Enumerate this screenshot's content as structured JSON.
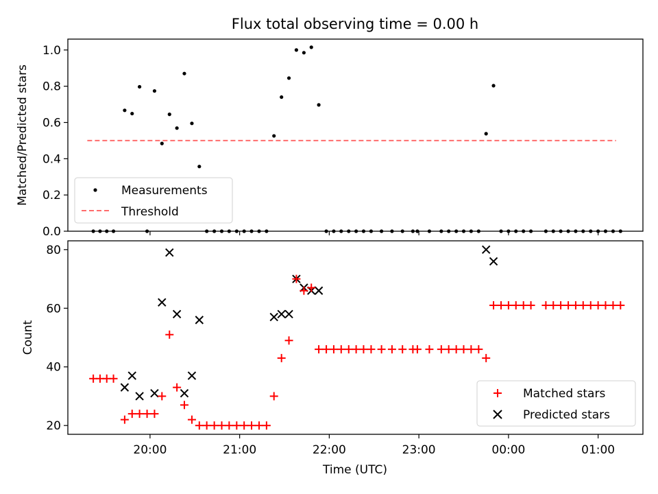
{
  "chart_data": [
    {
      "type": "scatter",
      "title": "Flux total observing time = 0.00 h",
      "xlabel": "",
      "ylabel": "Matched/Predicted stars",
      "xlim": [
        19.083,
        25.5
      ],
      "ylim": [
        0,
        1.06
      ],
      "yticks": [
        "0.0",
        "0.2",
        "0.4",
        "0.6",
        "0.8",
        "1.0"
      ],
      "legend_position": "lower-left",
      "series": [
        {
          "name": "Measurements",
          "kind": "points",
          "color": "#000000",
          "x": [
            19.367,
            19.442,
            19.517,
            19.592,
            19.717,
            19.8,
            19.883,
            19.967,
            20.05,
            20.133,
            20.217,
            20.3,
            20.383,
            20.467,
            20.55,
            20.633,
            20.717,
            20.8,
            20.883,
            20.967,
            21.05,
            21.133,
            21.217,
            21.3,
            21.383,
            21.467,
            21.55,
            21.633,
            21.717,
            21.8,
            21.883,
            21.967,
            22.05,
            22.133,
            22.217,
            22.3,
            22.383,
            22.467,
            22.583,
            22.7,
            22.817,
            22.933,
            22.983,
            23.117,
            23.25,
            23.333,
            23.417,
            23.5,
            23.583,
            23.667,
            23.75,
            23.833,
            23.917,
            24.0,
            24.083,
            24.167,
            24.25,
            24.417,
            24.5,
            24.583,
            24.667,
            24.75,
            24.833,
            24.917,
            25.0,
            25.083,
            25.167,
            25.25
          ],
          "y": [
            0,
            0,
            0,
            0,
            0.667,
            0.649,
            0.797,
            0,
            0.774,
            0.484,
            0.645,
            0.569,
            0.87,
            0.595,
            0.357,
            0,
            0,
            0,
            0,
            0,
            0,
            0,
            0,
            0,
            0.526,
            0.74,
            0.845,
            1.0,
            0.985,
            1.015,
            0.697,
            0,
            0,
            0,
            0,
            0,
            0,
            0,
            0,
            0,
            0,
            0,
            0,
            0,
            0,
            0,
            0,
            0,
            0,
            0,
            0.538,
            0.803,
            0,
            0,
            0,
            0,
            0,
            0,
            0,
            0,
            0,
            0,
            0,
            0,
            0,
            0,
            0,
            0
          ]
        },
        {
          "name": "Threshold",
          "kind": "dashed-line",
          "color": "#ff6b6b",
          "x": [
            19.3,
            25.2
          ],
          "y": [
            0.5,
            0.5
          ]
        }
      ]
    },
    {
      "type": "scatter",
      "title": "",
      "xlabel": "Time (UTC)",
      "ylabel": "Count",
      "xlim": [
        19.083,
        25.5
      ],
      "ylim": [
        17,
        83
      ],
      "yticks": [
        "20",
        "40",
        "60",
        "80"
      ],
      "xtick_values": [
        20,
        21,
        22,
        23,
        24,
        25
      ],
      "xtick_labels": [
        "20:00",
        "21:00",
        "22:00",
        "23:00",
        "00:00",
        "01:00"
      ],
      "legend_position": "lower-right",
      "series": [
        {
          "name": "Matched stars",
          "kind": "plus",
          "color": "#ff0000",
          "x": [
            19.367,
            19.442,
            19.517,
            19.592,
            19.717,
            19.8,
            19.883,
            19.967,
            20.05,
            20.133,
            20.217,
            20.3,
            20.383,
            20.467,
            20.55,
            20.633,
            20.717,
            20.8,
            20.883,
            20.967,
            21.05,
            21.133,
            21.217,
            21.3,
            21.383,
            21.467,
            21.55,
            21.633,
            21.717,
            21.8,
            21.883,
            21.967,
            22.05,
            22.133,
            22.217,
            22.3,
            22.383,
            22.467,
            22.583,
            22.7,
            22.817,
            22.933,
            22.983,
            23.117,
            23.25,
            23.333,
            23.417,
            23.5,
            23.583,
            23.667,
            23.75,
            23.833,
            23.917,
            24.0,
            24.083,
            24.167,
            24.25,
            24.417,
            24.5,
            24.583,
            24.667,
            24.75,
            24.833,
            24.917,
            25.0,
            25.083,
            25.167,
            25.25
          ],
          "y": [
            36,
            36,
            36,
            36,
            22,
            24,
            24,
            24,
            24,
            30,
            51,
            33,
            27,
            22,
            20,
            20,
            20,
            20,
            20,
            20,
            20,
            20,
            20,
            20,
            30,
            43,
            49,
            70,
            66,
            67,
            46,
            46,
            46,
            46,
            46,
            46,
            46,
            46,
            46,
            46,
            46,
            46,
            46,
            46,
            46,
            46,
            46,
            46,
            46,
            46,
            43,
            61,
            61,
            61,
            61,
            61,
            61,
            61,
            61,
            61,
            61,
            61,
            61,
            61,
            61,
            61,
            61,
            61
          ]
        },
        {
          "name": "Predicted stars",
          "kind": "x",
          "color": "#000000",
          "x": [
            19.717,
            19.8,
            19.883,
            20.05,
            20.133,
            20.217,
            20.3,
            20.383,
            20.467,
            20.55,
            21.383,
            21.467,
            21.55,
            21.633,
            21.717,
            21.8,
            21.883,
            23.75,
            23.833
          ],
          "y": [
            33,
            37,
            30,
            31,
            62,
            79,
            58,
            31,
            37,
            56,
            57,
            58,
            58,
            70,
            67,
            66,
            66,
            80,
            76
          ]
        }
      ]
    }
  ]
}
